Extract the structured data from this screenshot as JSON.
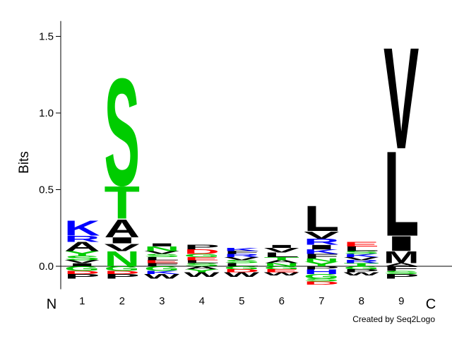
{
  "chart_data": {
    "type": "sequence-logo",
    "ylabel": "Bits",
    "ylim": [
      -0.15,
      1.6
    ],
    "y_ticks": [
      {
        "value": 0.0,
        "label": "0.0"
      },
      {
        "value": 0.5,
        "label": "0.5"
      },
      {
        "value": 1.0,
        "label": "1.0"
      },
      {
        "value": 1.5,
        "label": "1.5"
      }
    ],
    "positions": [
      "1",
      "2",
      "3",
      "4",
      "5",
      "6",
      "7",
      "8",
      "9"
    ],
    "n_label": "N",
    "c_label": "C",
    "credit": "Created by Seq2Logo",
    "colors": {
      "hydrophobic": "#000000",
      "polar": "#00cc00",
      "basic": "#0000ff",
      "acidic": "#ff0000"
    },
    "columns": [
      {
        "position": "1",
        "letters": [
          {
            "aa": "K",
            "h": 0.1,
            "color": "#0000ff"
          },
          {
            "aa": "R",
            "h": 0.04,
            "color": "#0000ff"
          },
          {
            "aa": "A",
            "h": 0.06,
            "color": "#000000"
          },
          {
            "aa": "Y",
            "h": 0.03,
            "color": "#00cc00"
          },
          {
            "aa": "S",
            "h": 0.03,
            "color": "#00cc00"
          },
          {
            "aa": "V",
            "h": 0.02,
            "color": "#000000"
          },
          {
            "aa": "I",
            "h": 0.02,
            "color": "#000000"
          }
        ],
        "neg": [
          {
            "aa": "G",
            "h": 0.03,
            "color": "#00cc00"
          },
          {
            "aa": "D",
            "h": 0.02,
            "color": "#ff0000"
          },
          {
            "aa": "P",
            "h": 0.03,
            "color": "#000000"
          }
        ]
      },
      {
        "position": "2",
        "letters": [
          {
            "aa": "S",
            "h": 0.72,
            "color": "#00cc00"
          },
          {
            "aa": "T",
            "h": 0.22,
            "color": "#00cc00"
          },
          {
            "aa": "A",
            "h": 0.12,
            "color": "#000000"
          },
          {
            "aa": "I",
            "h": 0.04,
            "color": "#000000"
          },
          {
            "aa": "V",
            "h": 0.05,
            "color": "#000000"
          },
          {
            "aa": "N",
            "h": 0.1,
            "color": "#00cc00"
          }
        ],
        "neg": [
          {
            "aa": "G",
            "h": 0.03,
            "color": "#00cc00"
          },
          {
            "aa": "D",
            "h": 0.02,
            "color": "#ff0000"
          },
          {
            "aa": "P",
            "h": 0.03,
            "color": "#000000"
          }
        ]
      },
      {
        "position": "3",
        "letters": [
          {
            "aa": "I",
            "h": 0.02,
            "color": "#000000"
          },
          {
            "aa": "N",
            "h": 0.03,
            "color": "#00cc00"
          },
          {
            "aa": "V",
            "h": 0.02,
            "color": "#000000"
          },
          {
            "aa": "S",
            "h": 0.02,
            "color": "#00cc00"
          },
          {
            "aa": "L",
            "h": 0.02,
            "color": "#000000"
          },
          {
            "aa": "E",
            "h": 0.02,
            "color": "#ff0000"
          },
          {
            "aa": "F",
            "h": 0.02,
            "color": "#000000"
          }
        ],
        "neg": [
          {
            "aa": "G",
            "h": 0.03,
            "color": "#00cc00"
          },
          {
            "aa": "K",
            "h": 0.02,
            "color": "#0000ff"
          },
          {
            "aa": "W",
            "h": 0.03,
            "color": "#000000"
          }
        ]
      },
      {
        "position": "4",
        "letters": [
          {
            "aa": "P",
            "h": 0.03,
            "color": "#000000"
          },
          {
            "aa": "D",
            "h": 0.03,
            "color": "#ff0000"
          },
          {
            "aa": "G",
            "h": 0.02,
            "color": "#00cc00"
          },
          {
            "aa": "E",
            "h": 0.02,
            "color": "#ff0000"
          },
          {
            "aa": "L",
            "h": 0.02,
            "color": "#000000"
          },
          {
            "aa": "S",
            "h": 0.02,
            "color": "#00cc00"
          }
        ],
        "neg": [
          {
            "aa": "A",
            "h": 0.02,
            "color": "#000000"
          },
          {
            "aa": "Y",
            "h": 0.02,
            "color": "#00cc00"
          },
          {
            "aa": "W",
            "h": 0.03,
            "color": "#000000"
          }
        ]
      },
      {
        "position": "5",
        "letters": [
          {
            "aa": "K",
            "h": 0.02,
            "color": "#0000ff"
          },
          {
            "aa": "F",
            "h": 0.02,
            "color": "#000000"
          },
          {
            "aa": "R",
            "h": 0.02,
            "color": "#0000ff"
          },
          {
            "aa": "V",
            "h": 0.02,
            "color": "#000000"
          },
          {
            "aa": "S",
            "h": 0.02,
            "color": "#00cc00"
          },
          {
            "aa": "L",
            "h": 0.02,
            "color": "#000000"
          }
        ],
        "neg": [
          {
            "aa": "G",
            "h": 0.02,
            "color": "#00cc00"
          },
          {
            "aa": "D",
            "h": 0.02,
            "color": "#ff0000"
          },
          {
            "aa": "W",
            "h": 0.03,
            "color": "#000000"
          }
        ]
      },
      {
        "position": "6",
        "letters": [
          {
            "aa": "I",
            "h": 0.02,
            "color": "#000000"
          },
          {
            "aa": "V",
            "h": 0.03,
            "color": "#000000"
          },
          {
            "aa": "L",
            "h": 0.03,
            "color": "#000000"
          },
          {
            "aa": "T",
            "h": 0.02,
            "color": "#00cc00"
          },
          {
            "aa": "A",
            "h": 0.02,
            "color": "#000000"
          },
          {
            "aa": "N",
            "h": 0.02,
            "color": "#00cc00"
          }
        ],
        "neg": [
          {
            "aa": "G",
            "h": 0.02,
            "color": "#00cc00"
          },
          {
            "aa": "E",
            "h": 0.02,
            "color": "#ff0000"
          },
          {
            "aa": "W",
            "h": 0.02,
            "color": "#000000"
          }
        ]
      },
      {
        "position": "7",
        "letters": [
          {
            "aa": "L",
            "h": 0.17,
            "color": "#000000"
          },
          {
            "aa": "V",
            "h": 0.05,
            "color": "#000000"
          },
          {
            "aa": "R",
            "h": 0.04,
            "color": "#0000ff"
          },
          {
            "aa": "I",
            "h": 0.03,
            "color": "#000000"
          },
          {
            "aa": "K",
            "h": 0.03,
            "color": "#0000ff"
          },
          {
            "aa": "F",
            "h": 0.03,
            "color": "#000000"
          },
          {
            "aa": "N",
            "h": 0.02,
            "color": "#00cc00"
          },
          {
            "aa": "Y",
            "h": 0.03,
            "color": "#00cc00"
          }
        ],
        "neg": [
          {
            "aa": "P",
            "h": 0.02,
            "color": "#000000"
          },
          {
            "aa": "H",
            "h": 0.03,
            "color": "#0000ff"
          },
          {
            "aa": "G",
            "h": 0.03,
            "color": "#00cc00"
          },
          {
            "aa": "S",
            "h": 0.02,
            "color": "#00cc00"
          },
          {
            "aa": "D",
            "h": 0.02,
            "color": "#ff0000"
          }
        ]
      },
      {
        "position": "8",
        "letters": [
          {
            "aa": "E",
            "h": 0.03,
            "color": "#ff0000"
          },
          {
            "aa": "L",
            "h": 0.03,
            "color": "#000000"
          },
          {
            "aa": "S",
            "h": 0.02,
            "color": "#00cc00"
          },
          {
            "aa": "K",
            "h": 0.02,
            "color": "#0000ff"
          },
          {
            "aa": "V",
            "h": 0.02,
            "color": "#000000"
          },
          {
            "aa": "R",
            "h": 0.02,
            "color": "#0000ff"
          },
          {
            "aa": "T",
            "h": 0.02,
            "color": "#00cc00"
          }
        ],
        "neg": [
          {
            "aa": "G",
            "h": 0.02,
            "color": "#00cc00"
          },
          {
            "aa": "P",
            "h": 0.02,
            "color": "#000000"
          },
          {
            "aa": "W",
            "h": 0.02,
            "color": "#000000"
          }
        ]
      },
      {
        "position": "9",
        "letters": [
          {
            "aa": "V",
            "h": 0.68,
            "color": "#000000"
          },
          {
            "aa": "L",
            "h": 0.57,
            "color": "#000000"
          },
          {
            "aa": "I",
            "h": 0.1,
            "color": "#000000"
          },
          {
            "aa": "M",
            "h": 0.08,
            "color": "#000000"
          },
          {
            "aa": "A",
            "h": 0.02,
            "color": "#000000"
          }
        ],
        "neg": [
          {
            "aa": "F",
            "h": 0.03,
            "color": "#000000"
          },
          {
            "aa": "S",
            "h": 0.02,
            "color": "#00cc00"
          },
          {
            "aa": "P",
            "h": 0.03,
            "color": "#000000"
          }
        ]
      }
    ]
  }
}
